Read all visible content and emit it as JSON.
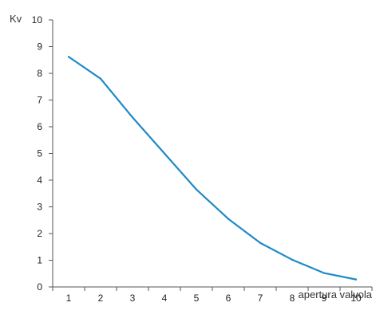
{
  "chart_data": {
    "type": "line",
    "xlabel": "apertura valvola",
    "ylabel": "Kv",
    "x": [
      1,
      2,
      3,
      4,
      5,
      6,
      7,
      8,
      9,
      10
    ],
    "x_ticks": [
      "1",
      "2",
      "3",
      "4",
      "5",
      "6",
      "7",
      "8",
      "9",
      "10"
    ],
    "y_ticks": [
      "0",
      "1",
      "2",
      "3",
      "4",
      "5",
      "6",
      "7",
      "8",
      "9",
      "10"
    ],
    "xlim": [
      0.5,
      10.5
    ],
    "ylim": [
      0,
      10
    ],
    "grid": false,
    "series": [
      {
        "values": [
          8.62,
          7.8,
          6.35,
          5.0,
          3.65,
          2.55,
          1.65,
          1.02,
          0.52,
          0.28
        ],
        "color": "#1f8ac7"
      }
    ]
  }
}
